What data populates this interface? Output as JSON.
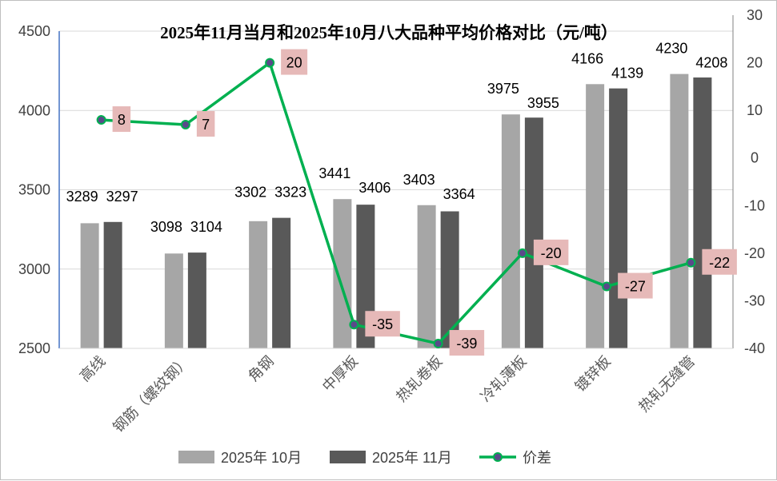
{
  "chart_data": {
    "type": "bar",
    "title": "2025年11月当月和2025年10月八大品种平均价格对比（元/吨）",
    "categories": [
      "高线",
      "钢筋（螺纹钢）",
      "角钢",
      "中厚板",
      "热轧卷板",
      "冷轧薄板",
      "镀锌板",
      "热轧无缝管"
    ],
    "series": [
      {
        "name": "2025年 10月",
        "type": "bar",
        "axis": "left",
        "color": "#a6a6a6",
        "values": [
          3289,
          3098,
          3302,
          3441,
          3403,
          3975,
          4166,
          4230
        ]
      },
      {
        "name": "2025年 11月",
        "type": "bar",
        "axis": "left",
        "color": "#595959",
        "values": [
          3297,
          3104,
          3323,
          3406,
          3364,
          3955,
          4139,
          4208
        ]
      },
      {
        "name": "价差",
        "type": "line",
        "axis": "right",
        "color": "#00b050",
        "marker_color": "#5a4a8a",
        "values": [
          8,
          7,
          20,
          -35,
          -39,
          -20,
          -27,
          -22
        ]
      }
    ],
    "y_left": {
      "min": 2500,
      "max": 4500,
      "ticks": [
        2500,
        3000,
        3500,
        4000,
        4500
      ]
    },
    "y_right": {
      "min": -40,
      "max": 30,
      "ticks": [
        -40,
        -30,
        -20,
        -10,
        0,
        10,
        20,
        30
      ]
    },
    "grid": true,
    "legend": "bottom",
    "diff_label_bg": "#e6b9b8"
  }
}
